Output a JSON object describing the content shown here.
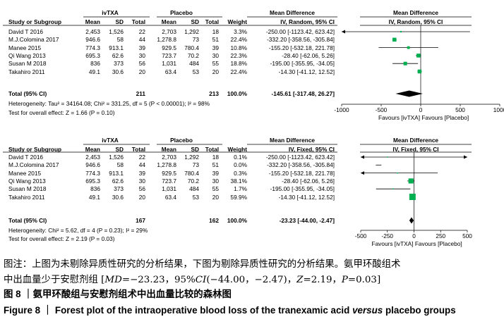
{
  "plots": [
    {
      "model": "random",
      "headers": {
        "ivtxa": "ivTXA",
        "placebo": "Placebo",
        "md": "Mean Difference",
        "md_right": "Mean Difference",
        "study": "Study or Subgroup",
        "mean": "Mean",
        "sd": "SD",
        "total": "Total",
        "weight": "Weight",
        "ci": "IV, Random, 95% CI",
        "ci_right": "IV, Random, 95% CI"
      },
      "studies": [
        {
          "name": "David T 2016",
          "m1": "2,453",
          "sd1": "1,526",
          "n1": "22",
          "m2": "2,703",
          "sd2": "1,292",
          "n2": "18",
          "w": "3.3%",
          "ci": "-250.00 [-1123.42, 623.42]",
          "md": -250,
          "lo": -1123.42,
          "hi": 623.42,
          "wv": 3.3
        },
        {
          "name": "M.J.Colomina 2017",
          "m1": "946.6",
          "sd1": "58",
          "n1": "44",
          "m2": "1,278.8",
          "sd2": "73",
          "n2": "51",
          "w": "22.4%",
          "ci": "-332.20 [-358.56, -305.84]",
          "md": -332.2,
          "lo": -358.56,
          "hi": -305.84,
          "wv": 22.4
        },
        {
          "name": "Manee 2015",
          "m1": "774.3",
          "sd1": "913.1",
          "n1": "39",
          "m2": "929.5",
          "sd2": "780.4",
          "n2": "39",
          "w": "10.8%",
          "ci": "-155.20 [-532.18, 221.78]",
          "md": -155.2,
          "lo": -532.18,
          "hi": 221.78,
          "wv": 10.8
        },
        {
          "name": "Qi Wang 2013",
          "m1": "695.3",
          "sd1": "62.6",
          "n1": "30",
          "m2": "723.7",
          "sd2": "70.2",
          "n2": "30",
          "w": "22.3%",
          "ci": "-28.40 [-62.06, 5.26]",
          "md": -28.4,
          "lo": -62.06,
          "hi": 5.26,
          "wv": 22.3
        },
        {
          "name": "Susan M 2018",
          "m1": "836",
          "sd1": "373",
          "n1": "56",
          "m2": "1,031",
          "sd2": "484",
          "n2": "55",
          "w": "18.8%",
          "ci": "-195.00 [-355.95, -34.05]",
          "md": -195,
          "lo": -355.95,
          "hi": -34.05,
          "wv": 18.8
        },
        {
          "name": "Takahiro 2011",
          "m1": "49.1",
          "sd1": "30.6",
          "n1": "20",
          "m2": "63.4",
          "sd2": "53",
          "n2": "20",
          "w": "22.4%",
          "ci": "-14.30 [-41.12, 12.52]",
          "md": -14.3,
          "lo": -41.12,
          "hi": 12.52,
          "wv": 22.4
        }
      ],
      "total": {
        "label": "Total (95% CI)",
        "n1": "211",
        "n2": "213",
        "w": "100.0%",
        "ci": "-145.61 [-317.48, 26.27]",
        "md": -145.61,
        "lo": -317.48,
        "hi": 26.27
      },
      "heterogeneity": "Heterogeneity: Tau² = 34164.08; Chi² = 331.25, df = 5 (P < 0.00001); I² = 98%",
      "overall": "Test for overall effect: Z = 1.66 (P = 0.10)",
      "axis": {
        "min": -1000,
        "max": 1000,
        "ticks": [
          {
            "v": -1000,
            "l": "-1000"
          },
          {
            "v": -500,
            "l": "-500"
          },
          {
            "v": 0,
            "l": "0"
          },
          {
            "v": 500,
            "l": "500"
          },
          {
            "v": 1000,
            "l": "1000"
          }
        ]
      },
      "favours": "Favours [ivTXA]   Favours [Placebo]"
    },
    {
      "model": "fixed",
      "headers": {
        "ivtxa": "ivTXA",
        "placebo": "Placebo",
        "md": "Mean Difference",
        "md_right": "Mean Difference",
        "study": "Study or Subgroup",
        "mean": "Mean",
        "sd": "SD",
        "total": "Total",
        "weight": "Weight",
        "ci": "IV, Fixed, 95% CI",
        "ci_right": "IV, Fixed, 95% CI"
      },
      "studies": [
        {
          "name": "David T 2016",
          "m1": "2,453",
          "sd1": "1,526",
          "n1": "22",
          "m2": "2,703",
          "sd2": "1,292",
          "n2": "18",
          "w": "0.1%",
          "ci": "-250.00 [-1123.42, 623.42]",
          "md": -250,
          "lo": -1123.42,
          "hi": 623.42,
          "wv": 0.1
        },
        {
          "name": "M.J.Colomina 2017",
          "m1": "946.6",
          "sd1": "58",
          "n1": "44",
          "m2": "1,278.8",
          "sd2": "73",
          "n2": "51",
          "w": "0.0%",
          "ci": "-332.20 [-358.56, -305.84]",
          "md": -332.2,
          "lo": -358.56,
          "hi": -305.84,
          "wv": 0
        },
        {
          "name": "Manee 2015",
          "m1": "774.3",
          "sd1": "913.1",
          "n1": "39",
          "m2": "929.5",
          "sd2": "780.4",
          "n2": "39",
          "w": "0.3%",
          "ci": "-155.20 [-532.18, 221.78]",
          "md": -155.2,
          "lo": -532.18,
          "hi": 221.78,
          "wv": 0.3
        },
        {
          "name": "Qi Wang 2013",
          "m1": "695.3",
          "sd1": "62.6",
          "n1": "30",
          "m2": "723.7",
          "sd2": "70.2",
          "n2": "30",
          "w": "38.1%",
          "ci": "-28.40 [-62.06, 5.26]",
          "md": -28.4,
          "lo": -62.06,
          "hi": 5.26,
          "wv": 38.1
        },
        {
          "name": "Susan M 2018",
          "m1": "836",
          "sd1": "373",
          "n1": "56",
          "m2": "1,031",
          "sd2": "484",
          "n2": "55",
          "w": "1.7%",
          "ci": "-195.00 [-355.95, -34.05]",
          "md": -195,
          "lo": -355.95,
          "hi": -34.05,
          "wv": 1.7
        },
        {
          "name": "Takahiro 2011",
          "m1": "49.1",
          "sd1": "30.6",
          "n1": "20",
          "m2": "63.4",
          "sd2": "53",
          "n2": "20",
          "w": "59.9%",
          "ci": "-14.30 [-41.12, 12.52]",
          "md": -14.3,
          "lo": -41.12,
          "hi": 12.52,
          "wv": 59.9
        }
      ],
      "total": {
        "label": "Total (95% CI)",
        "n1": "167",
        "n2": "162",
        "w": "100.0%",
        "ci": "-23.23 [-44.00, -2.47]",
        "md": -23.23,
        "lo": -44,
        "hi": -2.47
      },
      "heterogeneity": "Heterogeneity: Chi² = 5.62, df = 4 (P = 0.23); I² = 29%",
      "overall": "Test for overall effect: Z = 2.19 (P = 0.03)",
      "axis": {
        "min": -500,
        "max": 500,
        "ticks": [
          {
            "v": -500,
            "l": "-500"
          },
          {
            "v": -250,
            "l": "-250"
          },
          {
            "v": 0,
            "l": "0"
          },
          {
            "v": 250,
            "l": "250"
          },
          {
            "v": 500,
            "l": "500"
          }
        ]
      },
      "favours": "Favours [ivTXA]  Favours [Placebo]"
    }
  ],
  "caption": {
    "note_line1": "图注：上图为未剔除异质性研究的分析结果，下图为剔除异质性研究的分析结果。氨甲环酸组术",
    "note_line2_a": "中出血量少于安慰剂组 [",
    "md_label": "MD",
    "note_line2_b": "=−23.23，95%",
    "ci_label": "CI",
    "note_line2_c": "(−44.00，−2.47)，",
    "z_label": "Z",
    "note_line2_d": "=2.19，",
    "p_label": "P",
    "note_line2_e": "=0.03]",
    "fig_cn": "图 8 ｜氨甲环酸组与安慰剂组术中出血量比较的森林图",
    "fig_en": "Figure 8 ｜ Forest plot of the intraoperative blood loss of the tranexamic acid versus placebo groups",
    "fig_en_pre": "Figure 8 ｜ Forest plot of the intraoperative blood loss of the tranexamic acid ",
    "fig_en_italic": "versus",
    "fig_en_post": " placebo groups"
  },
  "colors": {
    "marker": "#00b050",
    "line": "#000000",
    "ci_line": "#000000"
  }
}
